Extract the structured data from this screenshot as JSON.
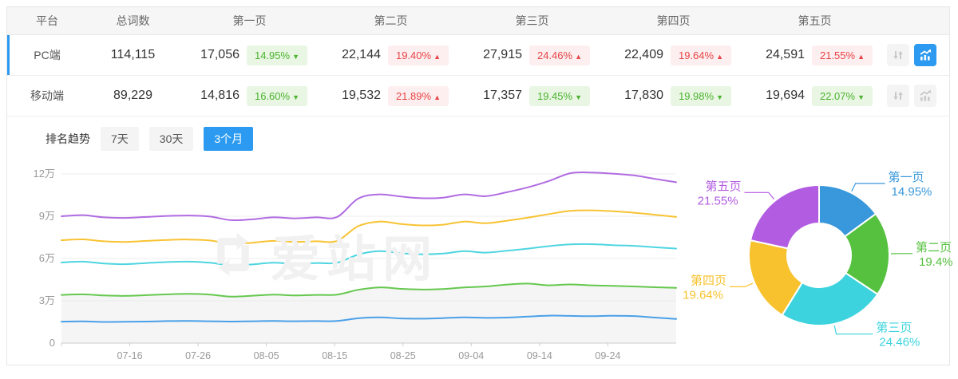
{
  "accent": "#2b9af0",
  "table": {
    "headers": [
      "平台",
      "总词数",
      "第一页",
      "第二页",
      "第三页",
      "第四页",
      "第五页"
    ],
    "rows": [
      {
        "platform": "PC端",
        "total": "114,115",
        "selected": true,
        "chart_button_active": true,
        "pages": [
          {
            "count": "17,056",
            "pct": "14.95%",
            "dir": "down"
          },
          {
            "count": "22,144",
            "pct": "19.40%",
            "dir": "up"
          },
          {
            "count": "27,915",
            "pct": "24.46%",
            "dir": "up"
          },
          {
            "count": "22,409",
            "pct": "19.64%",
            "dir": "up"
          },
          {
            "count": "24,591",
            "pct": "21.55%",
            "dir": "up"
          }
        ]
      },
      {
        "platform": "移动端",
        "total": "89,229",
        "selected": false,
        "chart_button_active": false,
        "pages": [
          {
            "count": "14,816",
            "pct": "16.60%",
            "dir": "down"
          },
          {
            "count": "19,532",
            "pct": "21.89%",
            "dir": "up"
          },
          {
            "count": "17,357",
            "pct": "19.45%",
            "dir": "down"
          },
          {
            "count": "17,830",
            "pct": "19.98%",
            "dir": "down"
          },
          {
            "count": "19,694",
            "pct": "22.07%",
            "dir": "down"
          }
        ]
      }
    ]
  },
  "trend": {
    "label": "排名趋势",
    "tabs": [
      {
        "label": "7天",
        "active": false
      },
      {
        "label": "30天",
        "active": false
      },
      {
        "label": "3个月",
        "active": true
      }
    ]
  },
  "watermark": "爱站网",
  "colors": {
    "badge_down_text": "#4cb330",
    "badge_down_bg": "#e9f6e3",
    "badge_up_text": "#e84444",
    "badge_up_bg": "#fdeef0",
    "header_bg": "#f6f6f6",
    "grid_line": "#ececec",
    "axis": "#cccccc",
    "tick_label": "#999999"
  },
  "chart_data": [
    {
      "type": "line",
      "title": "排名趋势（3个月）",
      "x_ticks": [
        "07-16",
        "07-26",
        "08-05",
        "08-15",
        "08-25",
        "09-04",
        "09-14",
        "09-24"
      ],
      "y_ticks": [
        "0",
        "3万",
        "6万",
        "9万",
        "12万"
      ],
      "ylim": [
        0,
        12.5
      ],
      "unit": "万",
      "grid": true,
      "legend_position": "none",
      "note": "values in 万 (10k), estimated from pixels; gray area fill under the green line",
      "series": [
        {
          "name": "purple-line",
          "color": "#b16ce2",
          "fill": false,
          "values": [
            9.0,
            9.08,
            8.92,
            8.88,
            8.95,
            9.02,
            9.05,
            8.98,
            8.72,
            8.78,
            8.92,
            8.85,
            8.92,
            8.95,
            10.25,
            10.55,
            10.4,
            10.28,
            10.32,
            10.55,
            10.42,
            10.7,
            11.05,
            11.5,
            12.05,
            12.1,
            12.02,
            11.9,
            11.65,
            11.41
          ]
        },
        {
          "name": "yellow-line",
          "color": "#f8c333",
          "fill": false,
          "values": [
            7.3,
            7.36,
            7.22,
            7.18,
            7.25,
            7.32,
            7.35,
            7.28,
            7.05,
            7.12,
            7.25,
            7.18,
            7.22,
            7.25,
            8.3,
            8.62,
            8.45,
            8.35,
            8.4,
            8.62,
            8.5,
            8.68,
            8.9,
            9.15,
            9.38,
            9.42,
            9.35,
            9.25,
            9.1,
            8.95
          ]
        },
        {
          "name": "cyan-line",
          "color": "#4fd5e0",
          "fill": false,
          "values": [
            5.72,
            5.78,
            5.65,
            5.6,
            5.68,
            5.75,
            5.78,
            5.7,
            5.52,
            5.58,
            5.7,
            5.62,
            5.68,
            5.7,
            6.28,
            6.52,
            6.38,
            6.3,
            6.35,
            6.52,
            6.42,
            6.55,
            6.7,
            6.88,
            7.0,
            7.02,
            6.95,
            6.9,
            6.8,
            6.71
          ]
        },
        {
          "name": "green-line",
          "color": "#65c84f",
          "fill": true,
          "values": [
            3.42,
            3.46,
            3.38,
            3.35,
            3.4,
            3.46,
            3.5,
            3.44,
            3.3,
            3.36,
            3.44,
            3.38,
            3.42,
            3.44,
            3.78,
            3.95,
            3.85,
            3.8,
            3.84,
            3.95,
            4.02,
            4.15,
            4.22,
            4.1,
            4.16,
            4.1,
            4.06,
            4.02,
            3.96,
            3.92
          ]
        },
        {
          "name": "blue-line",
          "color": "#4aa0e8",
          "fill": false,
          "values": [
            1.52,
            1.54,
            1.5,
            1.51,
            1.53,
            1.56,
            1.57,
            1.55,
            1.53,
            1.55,
            1.57,
            1.55,
            1.56,
            1.57,
            1.76,
            1.83,
            1.75,
            1.73,
            1.77,
            1.83,
            1.79,
            1.81,
            1.88,
            1.95,
            1.93,
            1.91,
            1.94,
            1.92,
            1.81,
            1.71
          ]
        }
      ]
    },
    {
      "type": "pie",
      "donut": true,
      "labels": [
        "第一页",
        "第二页",
        "第三页",
        "第四页",
        "第五页"
      ],
      "values": [
        14.95,
        19.4,
        24.46,
        19.64,
        21.55
      ],
      "display": [
        "14.95%",
        "19.4%",
        "24.46%",
        "19.64%",
        "21.55%"
      ],
      "colors": [
        "#3898db",
        "#55c13e",
        "#3cd3de",
        "#f7c22e",
        "#b25ce2"
      ]
    }
  ]
}
